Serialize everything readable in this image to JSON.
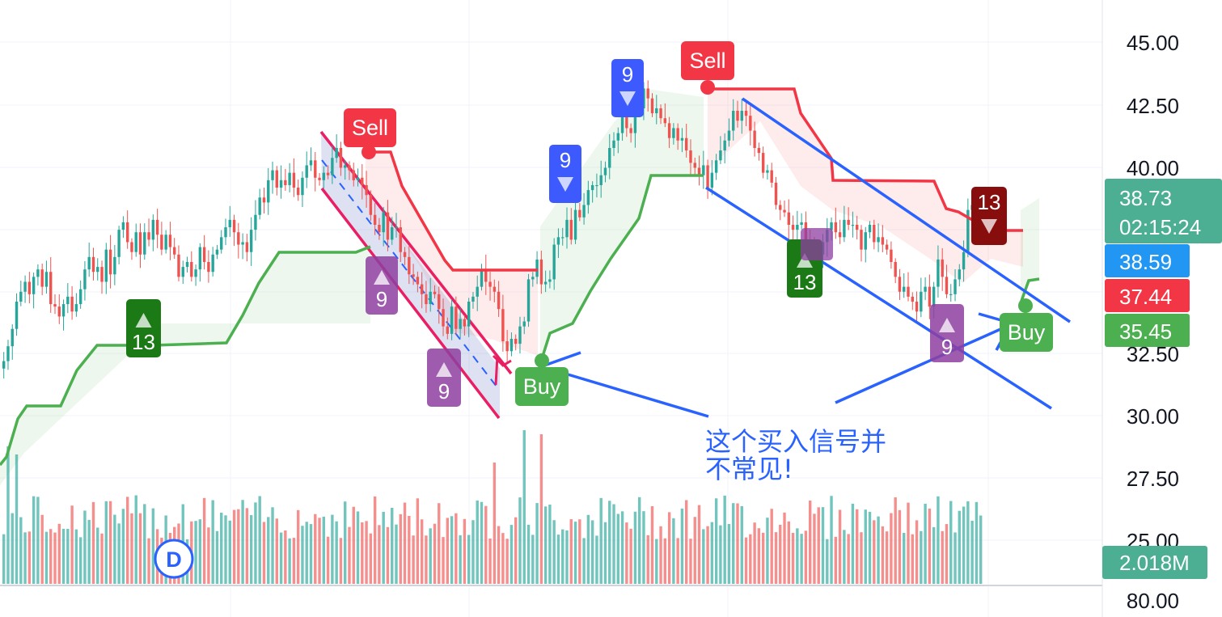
{
  "chart_data": {
    "type": "candlestick",
    "price_axis": {
      "ticks": [
        "45.00",
        "42.50",
        "40.00",
        "32.50",
        "30.00",
        "27.50",
        "25.00"
      ],
      "range": [
        23.0,
        46.5
      ]
    },
    "volume_axis": {
      "ticks": [
        "80.00"
      ]
    },
    "last_price": {
      "value": "38.73",
      "countdown": "02:15:24",
      "color": "#4caf93"
    },
    "price_tags": [
      {
        "value": "38.59",
        "color": "#2196f3"
      },
      {
        "value": "37.44",
        "color": "#f23645"
      },
      {
        "value": "35.45",
        "color": "#4caf50"
      }
    ],
    "volume_tag": {
      "value": "2.018M",
      "color": "#4caf93"
    },
    "close_series": [
      32.2,
      32.8,
      33.5,
      34.6,
      35.0,
      35.4,
      34.9,
      35.6,
      35.9,
      35.2,
      35.8,
      34.5,
      34.4,
      34.0,
      34.5,
      34.8,
      34.2,
      34.5,
      35.1,
      35.9,
      36.4,
      35.8,
      36.0,
      35.4,
      36.7,
      35.7,
      36.4,
      37.5,
      37.8,
      37.0,
      36.6,
      37.4,
      36.5,
      37.4,
      37.1,
      37.9,
      37.3,
      36.7,
      37.3,
      36.8,
      36.5,
      35.6,
      36.0,
      36.2,
      35.6,
      35.9,
      36.8,
      36.2,
      35.8,
      36.5,
      36.7,
      37.2,
      37.6,
      37.9,
      37.4,
      36.9,
      37.0,
      36.6,
      37.5,
      38.1,
      38.8,
      38.6,
      39.5,
      39.9,
      39.2,
      39.5,
      39.3,
      39.8,
      39.2,
      38.9,
      39.6,
      40.1,
      40.3,
      39.6,
      39.5,
      39.8,
      39.7,
      40.4,
      40.8,
      40.0,
      40.1,
      39.9,
      39.5,
      39.6,
      39.3,
      38.9,
      38.1,
      37.7,
      37.4,
      38.2,
      37.1,
      37.6,
      37.6,
      36.6,
      36.4,
      35.7,
      35.6,
      35.3,
      34.9,
      34.5,
      35.0,
      34.9,
      34.3,
      33.6,
      33.3,
      34.4,
      33.5,
      33.9,
      33.6,
      34.6,
      34.8,
      35.2,
      35.9,
      35.4,
      35.2,
      35.0,
      34.3,
      33.0,
      32.6,
      33.1,
      32.9,
      33.6,
      33.8,
      35.5,
      35.6,
      36.3,
      35.3,
      35.4,
      35.5,
      36.9,
      37.2,
      37.2,
      37.9,
      37.1,
      38.3,
      38.0,
      38.5,
      39.1,
      39.3,
      39.3,
      39.7,
      40.0,
      40.8,
      41.1,
      41.4,
      42.4,
      41.6,
      41.4,
      42.3,
      42.4,
      43.2,
      42.8,
      42.2,
      42.4,
      42.0,
      41.8,
      41.2,
      41.6,
      41.1,
      41.2,
      40.7,
      40.2,
      40.0,
      39.7,
      40.1,
      39.2,
      39.8,
      40.3,
      40.7,
      41.1,
      41.5,
      42.3,
      41.9,
      42.3,
      42.1,
      41.5,
      40.8,
      40.6,
      39.8,
      39.9,
      39.4,
      38.5,
      38.3,
      38.2,
      37.7,
      37.5,
      37.7,
      37.8,
      37.0,
      36.9,
      36.6,
      36.5,
      37.0,
      37.5,
      37.8,
      37.4,
      37.2,
      37.9,
      37.7,
      37.7,
      37.5,
      36.7,
      37.4,
      37.7,
      37.0,
      37.2,
      36.9,
      36.7,
      36.2,
      35.6,
      35.0,
      35.2,
      34.8,
      34.6,
      34.2,
      35.0,
      35.2,
      34.4,
      35.2,
      36.3,
      35.6,
      34.9,
      34.9,
      35.5,
      35.9,
      36.6,
      38.3,
      38.5,
      38.7,
      38.73
    ],
    "annotations": {
      "sell_labels": [
        "Sell",
        "Sell"
      ],
      "buy_labels": [
        "Buy",
        "Buy"
      ],
      "td_counts": [
        "13",
        "9",
        "9",
        "9",
        "9",
        "13",
        "13",
        "9"
      ],
      "interval_badge": "D",
      "note": "这个买入信号并\n不常见!",
      "note_lines": [
        "这个买入信号并",
        "不常见!"
      ]
    }
  }
}
